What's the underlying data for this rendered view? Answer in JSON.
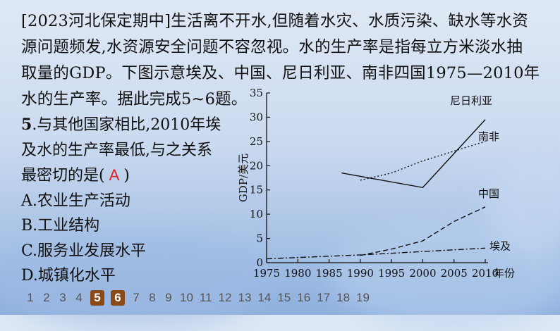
{
  "question": {
    "intro": "[2023河北保定期中]生活离不开水,但随着水灾、水质污染、缺水等水资源问题频发,水资源安全问题不容忽视。水的生产率是指每立方米淡水抽取量的GDP。下图示意埃及、中国、尼日利亚、南非四国1975—2010年水的生产率。据此完成5~6题。",
    "intro_lines": [
      "[2023河北保定期中]生活离不开水,但随着水灾、水质污染、缺水等水资",
      "源问题频发,水资源安全问题不容忽视。水的生产率是指每立方米淡水抽",
      "取量的GDP。下图示意埃及、中国、尼日利亚、南非四国1975—2010年",
      "水的生产率。据此完成5~6题。"
    ],
    "number": "5",
    "stem_lines": [
      ".与其他国家相比,2010年埃",
      "及水的生产率最低,与之关系",
      "最密切的是("
    ],
    "stem_close": ")",
    "answer": "A",
    "options": [
      "A.农业生产活动",
      "B.工业结构",
      "C.服务业发展水平",
      "D.城镇化水平"
    ]
  },
  "pager": {
    "pages": [
      "1",
      "2",
      "3",
      "4",
      "5",
      "6",
      "7",
      "8",
      "9",
      "10",
      "11",
      "12",
      "13",
      "14",
      "15",
      "16",
      "17",
      "18",
      "19"
    ],
    "active": [
      "5",
      "6"
    ]
  },
  "chart_data": {
    "type": "line",
    "title": "",
    "xlabel": "年份",
    "ylabel": "GDP/美元",
    "xlim": [
      1975,
      2010
    ],
    "ylim": [
      0,
      35
    ],
    "x_ticks": [
      1975,
      1980,
      1985,
      1990,
      1995,
      2000,
      2005,
      2010
    ],
    "y_ticks": [
      0,
      5,
      10,
      15,
      20,
      25,
      30,
      35
    ],
    "grid": false,
    "legend": "direct labels at line ends",
    "series": [
      {
        "name": "尼日利亚",
        "style": "solid",
        "x": [
          1987,
          2000,
          2010
        ],
        "y": [
          18.5,
          15.5,
          29.5
        ]
      },
      {
        "name": "南非",
        "style": "dotted",
        "x": [
          1990,
          1995,
          2000,
          2005,
          2010
        ],
        "y": [
          17,
          18.5,
          21,
          23,
          25
        ]
      },
      {
        "name": "中国",
        "style": "dashed",
        "x": [
          1990,
          1995,
          2000,
          2005,
          2010
        ],
        "y": [
          1.5,
          2.8,
          4.5,
          8.5,
          11.5
        ]
      },
      {
        "name": "埃及",
        "style": "dashdot",
        "x": [
          1975,
          1990,
          2000,
          2010
        ],
        "y": [
          0.8,
          1.6,
          2.3,
          3.0
        ]
      }
    ]
  }
}
